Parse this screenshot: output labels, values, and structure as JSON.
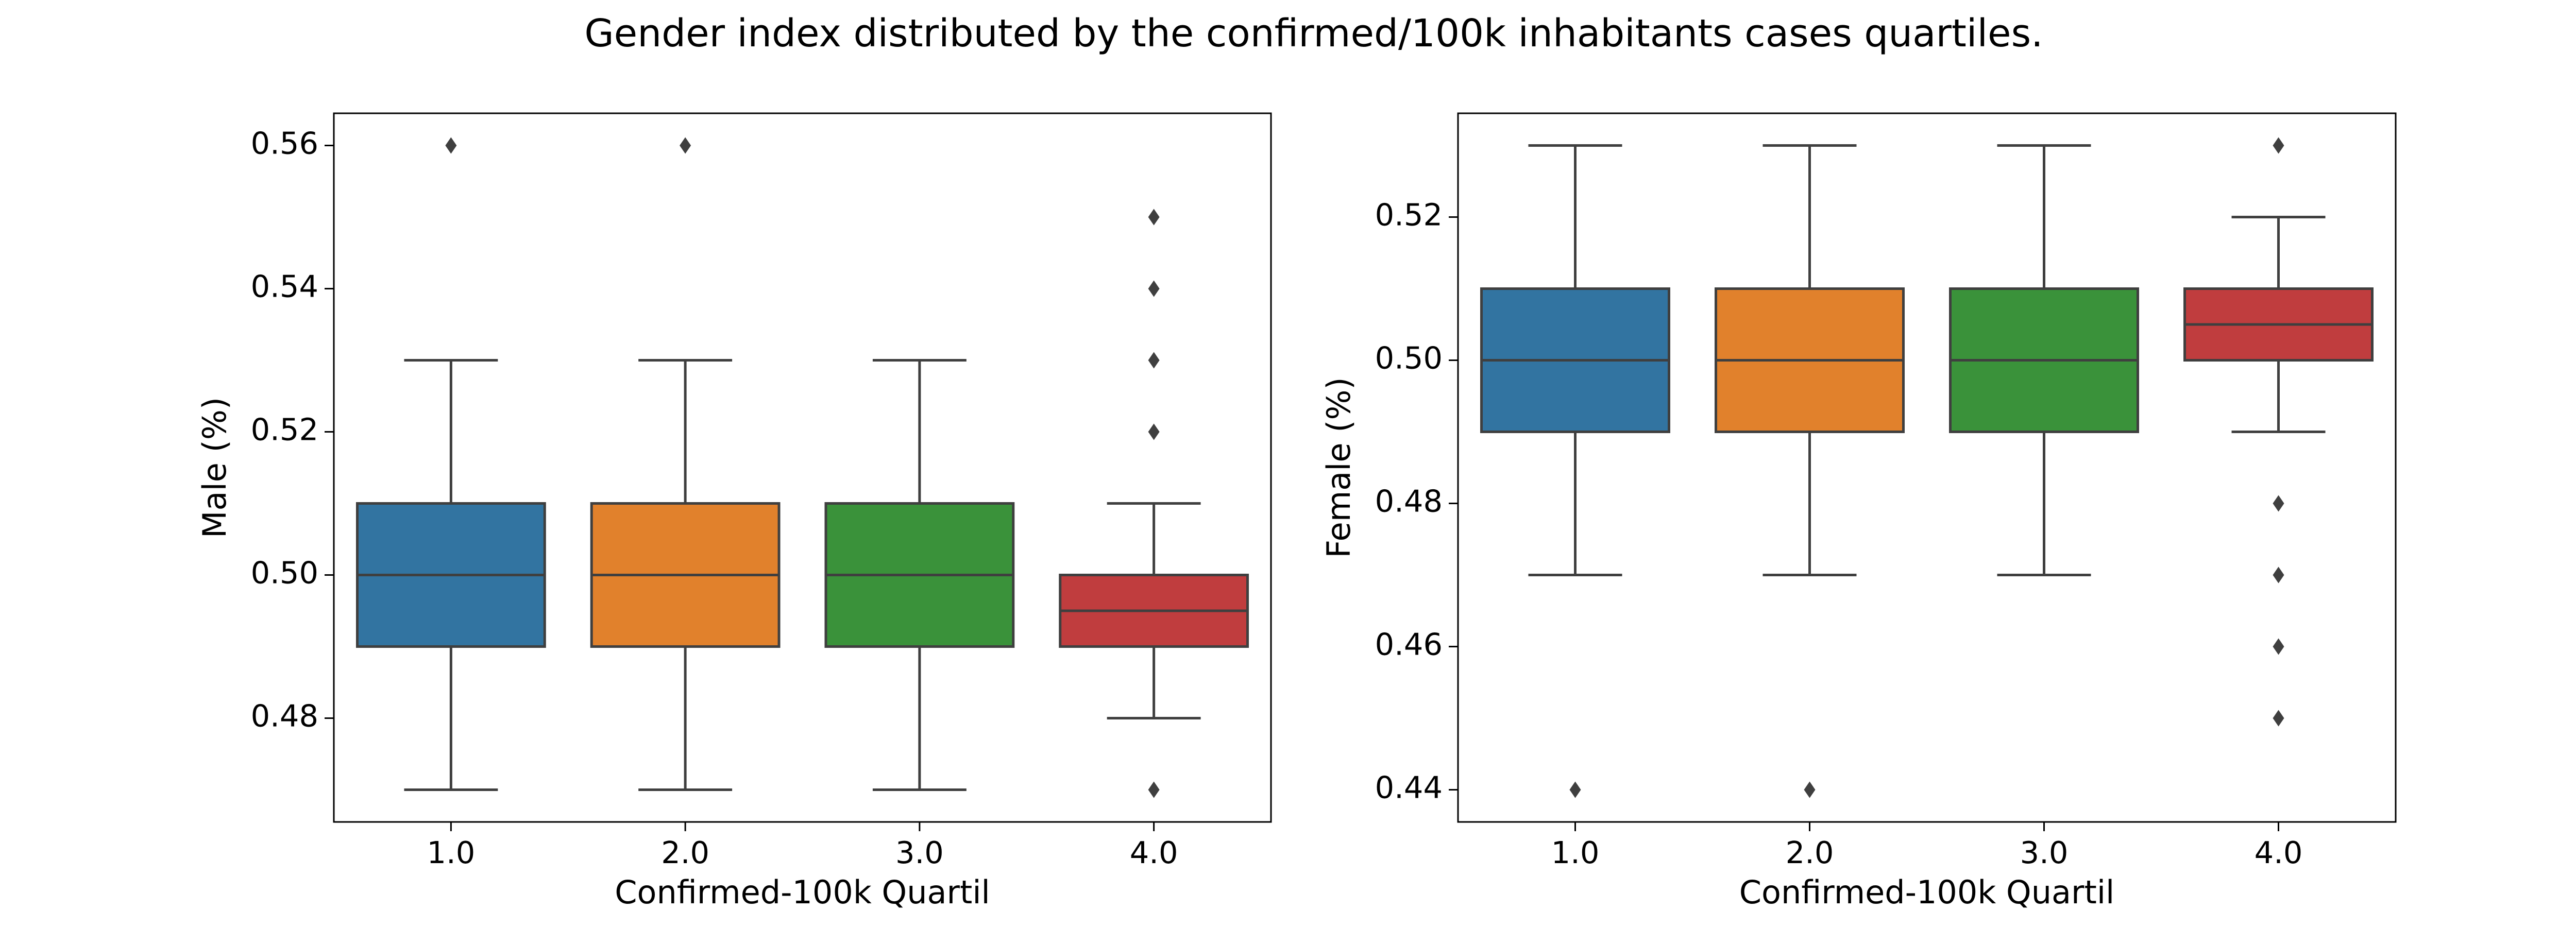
{
  "figure": {
    "title": "Gender index distributed by the confirmed/100k inhabitants cases quartiles."
  },
  "chart_data": [
    {
      "type": "box",
      "xlabel": "Confirmed-100k Quartil",
      "ylabel": "Male (%)",
      "ylim": [
        0.4655,
        0.5645
      ],
      "yticks": [
        "0.48",
        "0.50",
        "0.52",
        "0.54",
        "0.56"
      ],
      "ytick_values": [
        0.48,
        0.5,
        0.52,
        0.54,
        0.56
      ],
      "grid": false,
      "categories": [
        "1.0",
        "2.0",
        "3.0",
        "4.0"
      ],
      "colors": [
        "#3274a1",
        "#e1812c",
        "#3a923a",
        "#c03d3e"
      ],
      "boxes": [
        {
          "whislo": 0.47,
          "q1": 0.49,
          "med": 0.5,
          "q3": 0.51,
          "whishi": 0.53,
          "fliers": [
            0.56
          ]
        },
        {
          "whislo": 0.47,
          "q1": 0.49,
          "med": 0.5,
          "q3": 0.51,
          "whishi": 0.53,
          "fliers": [
            0.56
          ]
        },
        {
          "whislo": 0.47,
          "q1": 0.49,
          "med": 0.5,
          "q3": 0.51,
          "whishi": 0.53,
          "fliers": []
        },
        {
          "whislo": 0.48,
          "q1": 0.49,
          "med": 0.495,
          "q3": 0.5,
          "whishi": 0.51,
          "fliers": [
            0.47,
            0.52,
            0.53,
            0.54,
            0.55
          ]
        }
      ]
    },
    {
      "type": "box",
      "xlabel": "Confirmed-100k Quartil",
      "ylabel": "Female (%)",
      "ylim": [
        0.4355,
        0.5345
      ],
      "yticks": [
        "0.44",
        "0.46",
        "0.48",
        "0.50",
        "0.52"
      ],
      "ytick_values": [
        0.44,
        0.46,
        0.48,
        0.5,
        0.52
      ],
      "grid": false,
      "categories": [
        "1.0",
        "2.0",
        "3.0",
        "4.0"
      ],
      "colors": [
        "#3274a1",
        "#e1812c",
        "#3a923a",
        "#c03d3e"
      ],
      "boxes": [
        {
          "whislo": 0.47,
          "q1": 0.49,
          "med": 0.5,
          "q3": 0.51,
          "whishi": 0.53,
          "fliers": [
            0.44
          ]
        },
        {
          "whislo": 0.47,
          "q1": 0.49,
          "med": 0.5,
          "q3": 0.51,
          "whishi": 0.53,
          "fliers": [
            0.44
          ]
        },
        {
          "whislo": 0.47,
          "q1": 0.49,
          "med": 0.5,
          "q3": 0.51,
          "whishi": 0.53,
          "fliers": []
        },
        {
          "whislo": 0.49,
          "q1": 0.5,
          "med": 0.505,
          "q3": 0.51,
          "whishi": 0.52,
          "fliers": [
            0.45,
            0.46,
            0.47,
            0.48,
            0.53
          ]
        }
      ]
    }
  ]
}
